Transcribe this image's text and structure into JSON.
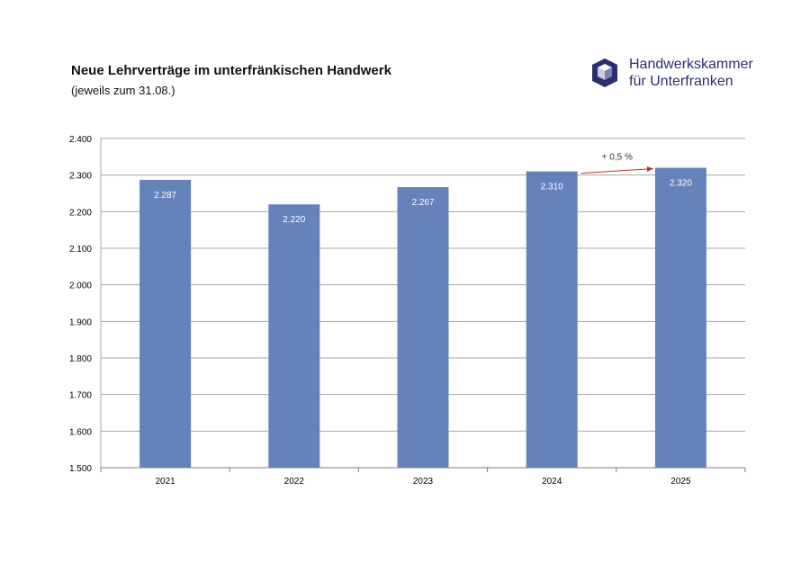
{
  "header": {
    "title": "Neue Lehrverträge im unterfränkischen Handwerk",
    "subtitle": "(jeweils zum 31.08.)"
  },
  "logo": {
    "line1": "Handwerkskammer",
    "line2": "für Unterfranken",
    "icon": "cube-logo-icon",
    "color": "#2b2f6e"
  },
  "chart_data": {
    "type": "bar",
    "categories": [
      "2021",
      "2022",
      "2023",
      "2024",
      "2025"
    ],
    "values": [
      2287,
      2220,
      2267,
      2310,
      2320
    ],
    "value_labels": [
      "2.287",
      "2.220",
      "2.267",
      "2.310",
      "2.320"
    ],
    "ylim": [
      1500,
      2400
    ],
    "yticks": [
      1500,
      1600,
      1700,
      1800,
      1900,
      2000,
      2100,
      2200,
      2300,
      2400
    ],
    "ytick_labels": [
      "1.500",
      "1.600",
      "1.700",
      "1.800",
      "1.900",
      "2.000",
      "2.100",
      "2.200",
      "2.300",
      "2.400"
    ],
    "grid": true,
    "bar_color": "#6583bb",
    "annotation": {
      "text": "+ 0,5 %",
      "from_category": "2024",
      "to_category": "2025",
      "color": "#b03a2e"
    }
  }
}
